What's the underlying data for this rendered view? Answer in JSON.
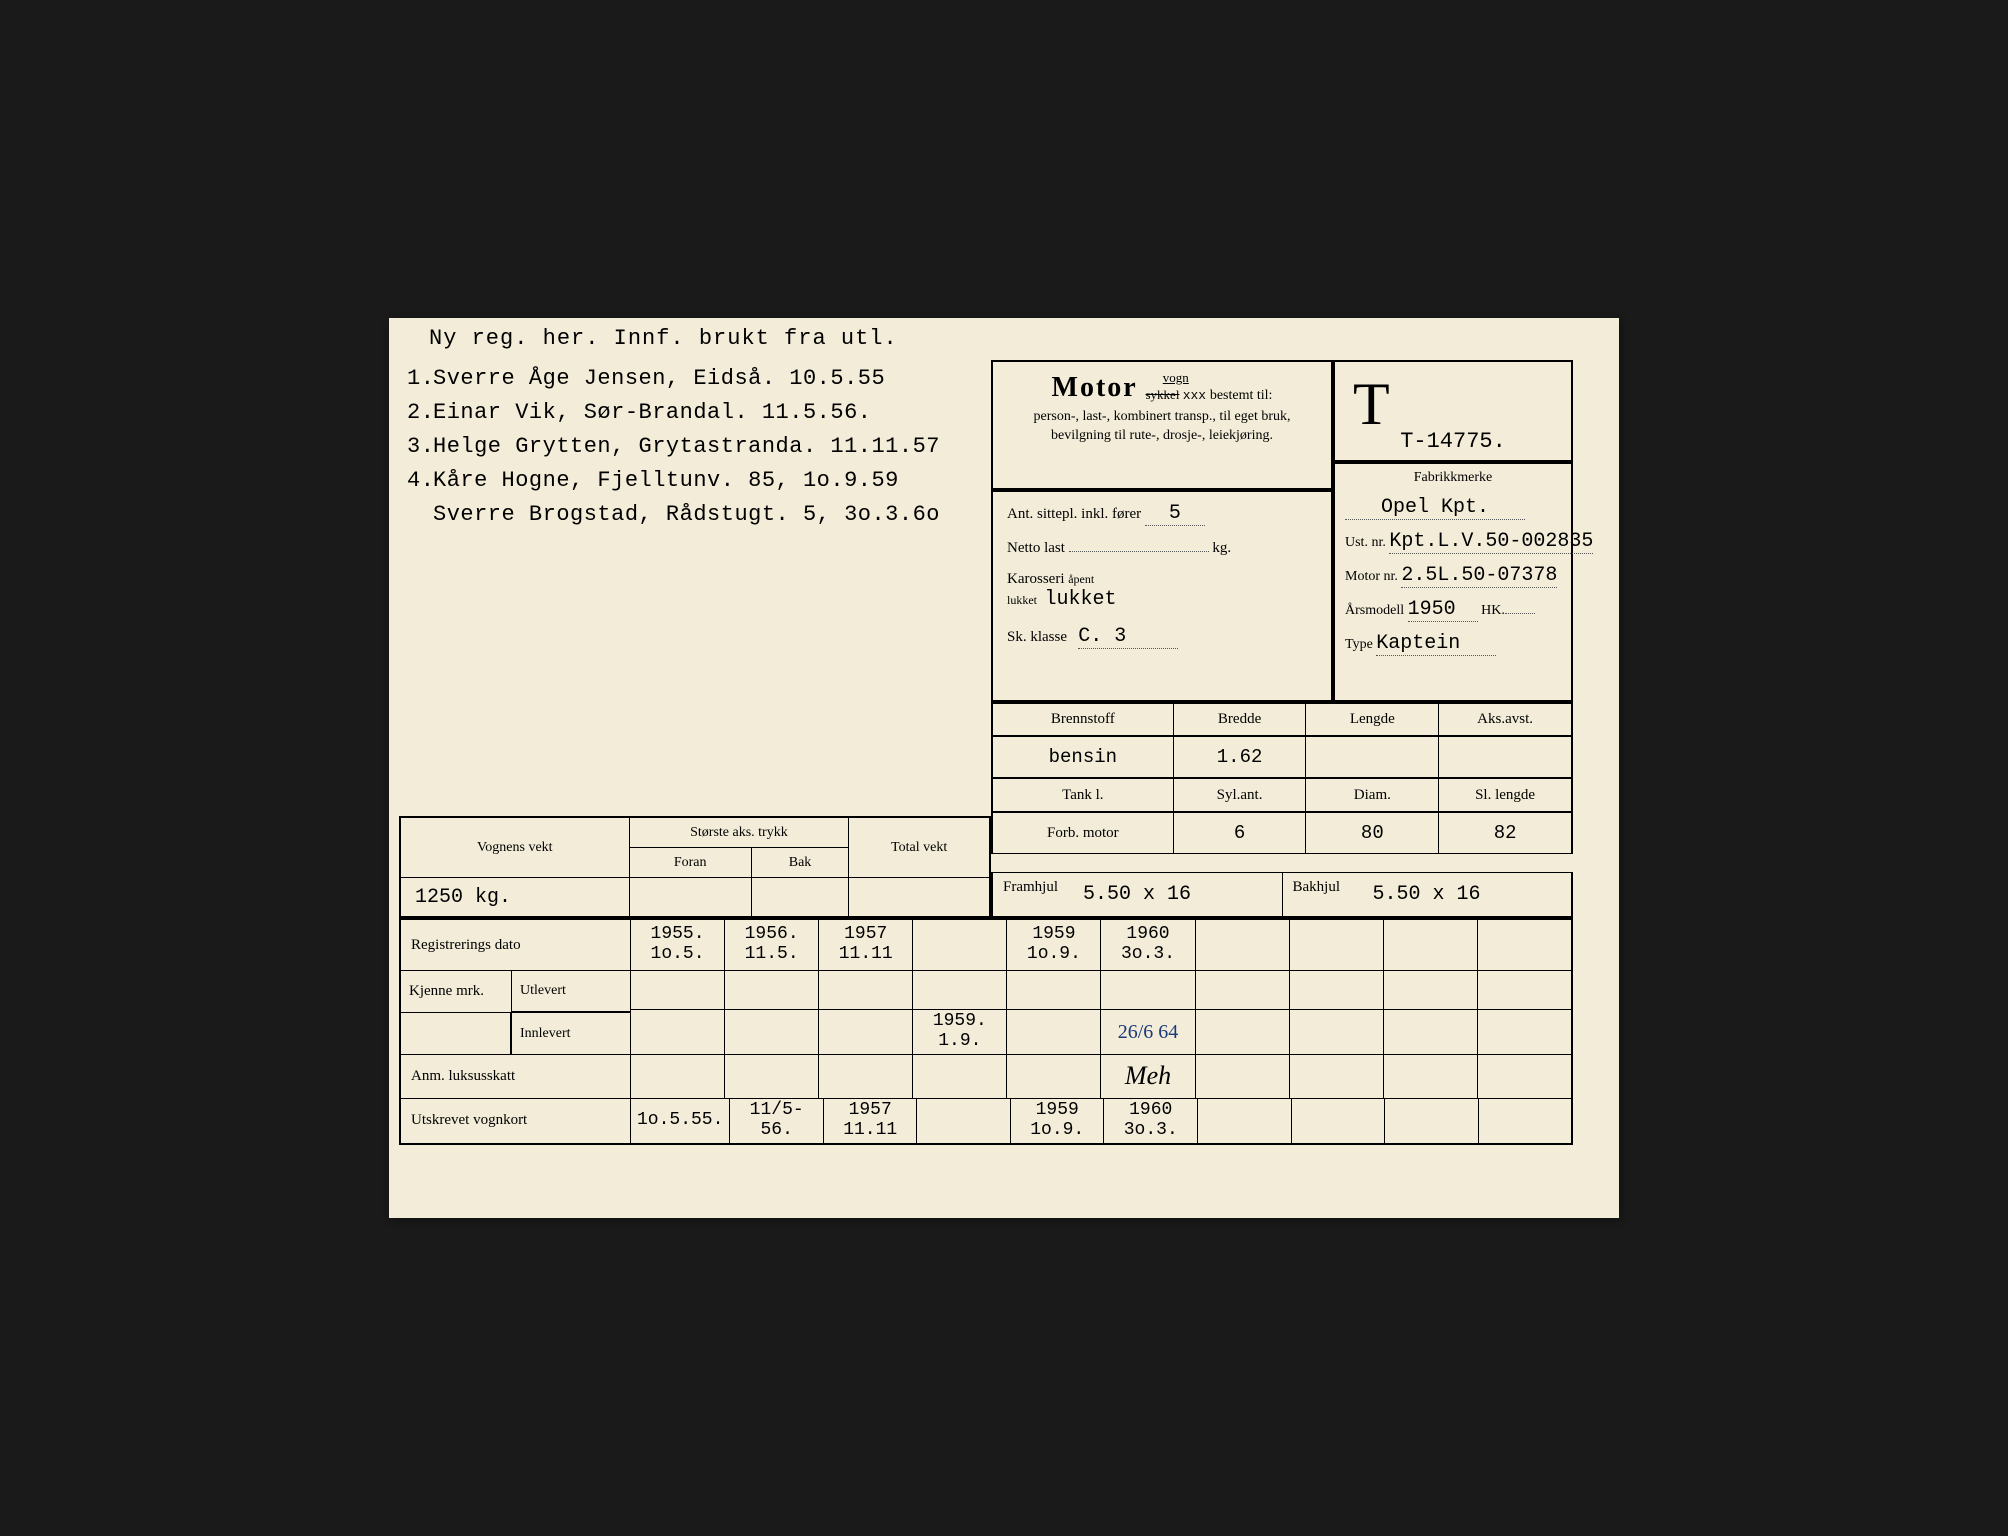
{
  "header_note": "Ny reg. her.  Innf. brukt fra utl.",
  "owners": [
    {
      "n": "1.",
      "text": "Sverre Åge Jensen, Eidså. 10.5.55"
    },
    {
      "n": "2.",
      "text": "Einar Vik, Sør-Brandal.      11.5.56."
    },
    {
      "n": "3.",
      "text": "Helge Grytten, Grytastranda. 11.11.57"
    },
    {
      "n": "4.",
      "text": "Kåre Hogne, Fjelltunv. 85, 1o.9.59"
    },
    {
      "n": "",
      "text": "Sverre Brogstad, Rådstugt. 5, 3o.3.6o"
    }
  ],
  "motor": {
    "title": "Motor",
    "vogn": "vogn",
    "sykkel": "sykkel",
    "xxx": "xxx",
    "bestemt": "bestemt til:",
    "desc": "person-, last-, kombinert transp., til eget bruk, bevilgning til rute-, drosje-, leiekjøring."
  },
  "reg_letter": "T",
  "reg_number": "T-14775.",
  "fab": {
    "hdr": "Fabrikkmerke",
    "merke": "Opel Kpt.",
    "ust_lbl": "Ust. nr.",
    "ust": "Kpt.L.V.50-002835",
    "motor_lbl": "Motor nr.",
    "motor": "2.5L.50-07378",
    "ars_lbl": "Årsmodell",
    "ars": "1950",
    "hk": "HK.",
    "type_lbl": "Type",
    "type": "Kaptein"
  },
  "mid": {
    "sitt_lbl": "Ant. sittepl. inkl. fører",
    "sitt": "5",
    "netto_lbl": "Netto last",
    "netto": "",
    "kg": "kg.",
    "kaross_lbl": "Karosseri",
    "kaross_opt": "åpent / lukket",
    "kaross": "lukket",
    "sk_lbl": "Sk. klasse",
    "sk": "C. 3"
  },
  "spec": {
    "h1": [
      "Brennstoff",
      "Bredde",
      "Lengde",
      "Aks.avst."
    ],
    "r1": [
      "bensin",
      "1.62",
      "",
      ""
    ],
    "h2": [
      "Tank        l.",
      "Syl.ant.",
      "Diam.",
      "Sl. lengde"
    ],
    "r2_lbl": "Forb. motor",
    "r2": [
      "",
      "6",
      "80",
      "82"
    ]
  },
  "tyres": {
    "fram_lbl": "Framhjul",
    "fram": "5.50 x 16",
    "bak_lbl": "Bakhjul",
    "bak": "5.50 x 16"
  },
  "weight": {
    "vogn_lbl": "Vognens vekt",
    "aks_lbl": "Største aks. trykk",
    "foran": "Foran",
    "bak": "Bak",
    "total": "Total vekt",
    "vekt": "1250 kg."
  },
  "bottom": {
    "reg_lbl": "Registrerings dato",
    "reg": [
      {
        "a": "1955.",
        "b": "1o.5."
      },
      {
        "a": "1956.",
        "b": "11.5."
      },
      {
        "a": "1957",
        "b": "11.11"
      },
      {
        "a": "",
        "b": ""
      },
      {
        "a": "1959",
        "b": "1o.9."
      },
      {
        "a": "1960",
        "b": "3o.3."
      },
      {
        "a": "",
        "b": ""
      },
      {
        "a": "",
        "b": ""
      },
      {
        "a": "",
        "b": ""
      },
      {
        "a": "",
        "b": ""
      }
    ],
    "kj_lbl": "Kjenne mrk.",
    "utl": "Utlevert",
    "inn": "Innlevert",
    "inn_vals": [
      "",
      "",
      "",
      "1959.\n1.9.",
      "",
      "26/6 64",
      "",
      "",
      "",
      ""
    ],
    "anm_lbl": "Anm. luksusskatt",
    "anm_vals": [
      "",
      "",
      "",
      "",
      "",
      "Meh",
      "",
      "",
      "",
      ""
    ],
    "uts_lbl": "Utskrevet vognkort",
    "uts": [
      "1o.5.55.",
      "11/5-56.",
      "1957\n11.11",
      "",
      "1959\n1o.9.",
      "1960\n3o.3.",
      "",
      "",
      "",
      ""
    ]
  }
}
